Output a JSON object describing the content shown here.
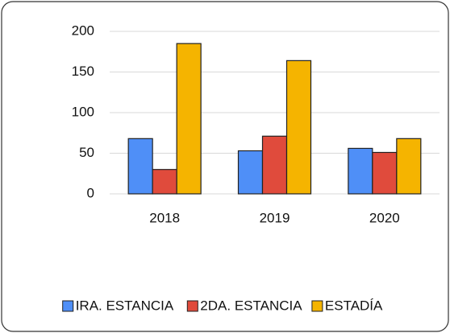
{
  "chart_data": {
    "type": "bar",
    "categories": [
      "2018",
      "2019",
      "2020"
    ],
    "series": [
      {
        "name": "IRA. ESTANCIA",
        "color": "#4f8ff7",
        "values": [
          68,
          53,
          56
        ]
      },
      {
        "name": "2DA. ESTANCIA",
        "color": "#e04b3c",
        "values": [
          30,
          71,
          51
        ]
      },
      {
        "name": "ESTADÍA",
        "color": "#f5b400",
        "values": [
          185,
          164,
          68
        ]
      }
    ],
    "ylim": [
      0,
      200
    ],
    "yticks": [
      0,
      50,
      100,
      150,
      200
    ],
    "grid": true,
    "legend": "bottom"
  }
}
